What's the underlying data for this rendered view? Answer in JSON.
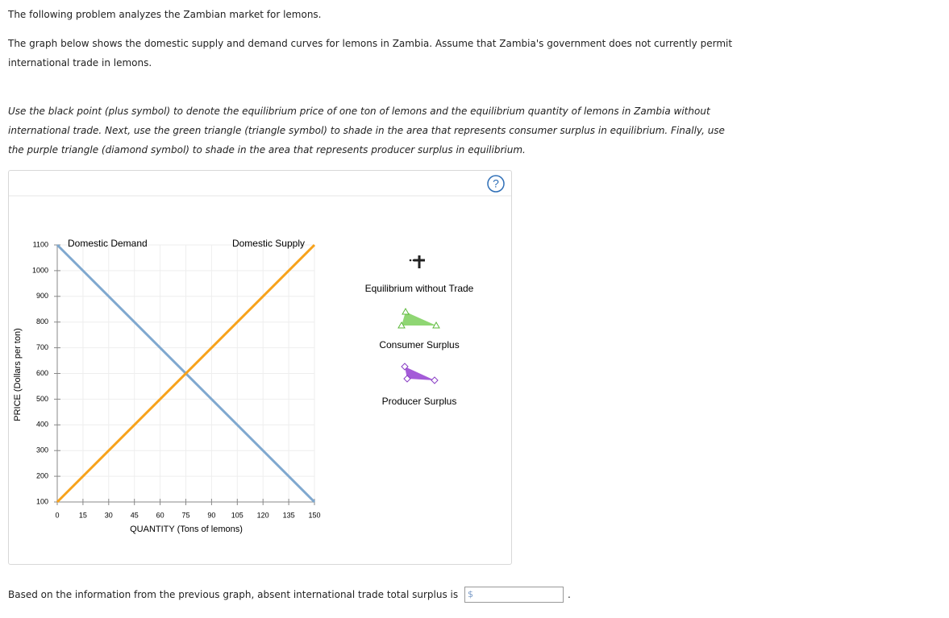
{
  "intro": [
    "The following problem analyzes the Zambian market for lemons."
  ],
  "description": [
    "The graph below shows the domestic supply and demand curves for lemons in Zambia. Assume that Zambia's government does not currently permit",
    "international trade in lemons."
  ],
  "instructions": [
    "Use the black point (plus symbol) to denote the equilibrium price of one ton of lemons and the equilibrium quantity of lemons in Zambia without",
    "international trade. Next, use the green triangle (triangle symbol) to shade in the area that represents consumer surplus in equilibrium. Finally, use",
    "the purple triangle (diamond symbol) to shade in the area that represents producer surplus in equilibrium."
  ],
  "help_icon": "?",
  "chart_data": {
    "type": "line",
    "x_label": "QUANTITY (Tons of lemons)",
    "y_label": "PRICE (Dollars per ton)",
    "xlim": [
      0,
      150
    ],
    "ylim": [
      100,
      1100
    ],
    "xticks": [
      0,
      15,
      30,
      45,
      60,
      75,
      90,
      105,
      120,
      135,
      150
    ],
    "yticks": [
      100,
      200,
      300,
      400,
      500,
      600,
      700,
      800,
      900,
      1000,
      1100
    ],
    "grid": true,
    "x": [
      0,
      150
    ],
    "series": [
      {
        "name": "Domestic Demand",
        "color": "#7fa8cf",
        "values": [
          1100,
          100
        ]
      },
      {
        "name": "Domestic Supply",
        "color": "#f7a21b",
        "values": [
          100,
          1100
        ]
      }
    ]
  },
  "tools": [
    "Equilibrium without Trade",
    "Consumer Surplus",
    "Producer Surplus"
  ],
  "question": {
    "text": "Based on the information from the previous graph, absent international trade total surplus is",
    "currency": "$",
    "end": "."
  }
}
